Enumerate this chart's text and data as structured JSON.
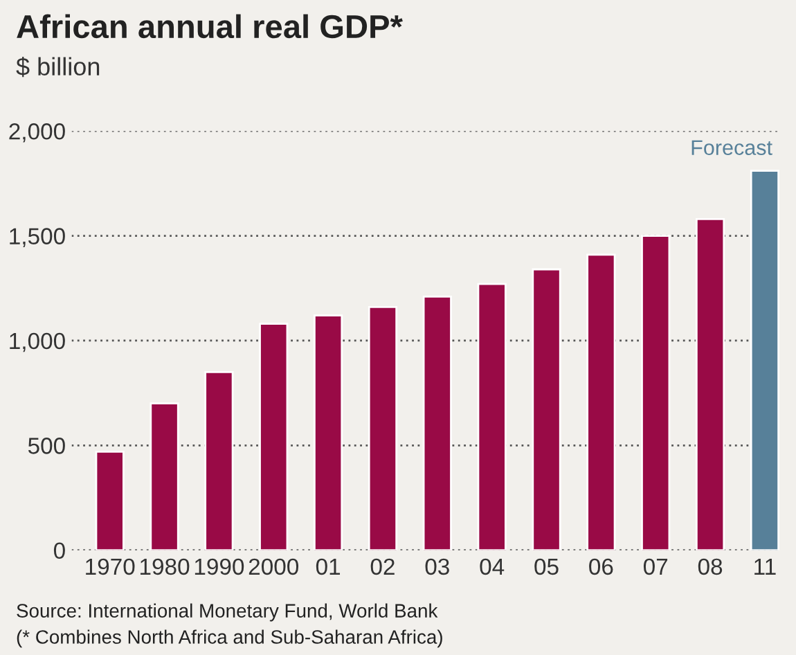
{
  "chart_data": {
    "type": "bar",
    "title": "African annual real GDP*",
    "subtitle": "$ billion",
    "categories": [
      "1970",
      "1980",
      "1990",
      "2000",
      "01",
      "02",
      "03",
      "04",
      "05",
      "06",
      "07",
      "08",
      "11"
    ],
    "values": [
      470,
      700,
      850,
      1080,
      1120,
      1160,
      1210,
      1270,
      1340,
      1410,
      1500,
      1580,
      1810
    ],
    "colors": [
      "#990a46",
      "#990a46",
      "#990a46",
      "#990a46",
      "#990a46",
      "#990a46",
      "#990a46",
      "#990a46",
      "#990a46",
      "#990a46",
      "#990a46",
      "#990a46",
      "#578099"
    ],
    "ylim": [
      0,
      2000
    ],
    "yticks": [
      0,
      {
        "value": 500,
        "label": "500"
      },
      {
        "value": 1000,
        "label": "1,000"
      },
      {
        "value": 1500,
        "label": "1,500"
      },
      {
        "value": 2000,
        "label": "2,000"
      }
    ],
    "grid": "y",
    "legend": false,
    "annotations": [
      {
        "text": "Forecast",
        "x": "11",
        "y": 1810
      },
      "Source: International Monetary Fund, World Bank",
      "(* Combines North Africa and Sub-Saharan Africa)"
    ]
  }
}
